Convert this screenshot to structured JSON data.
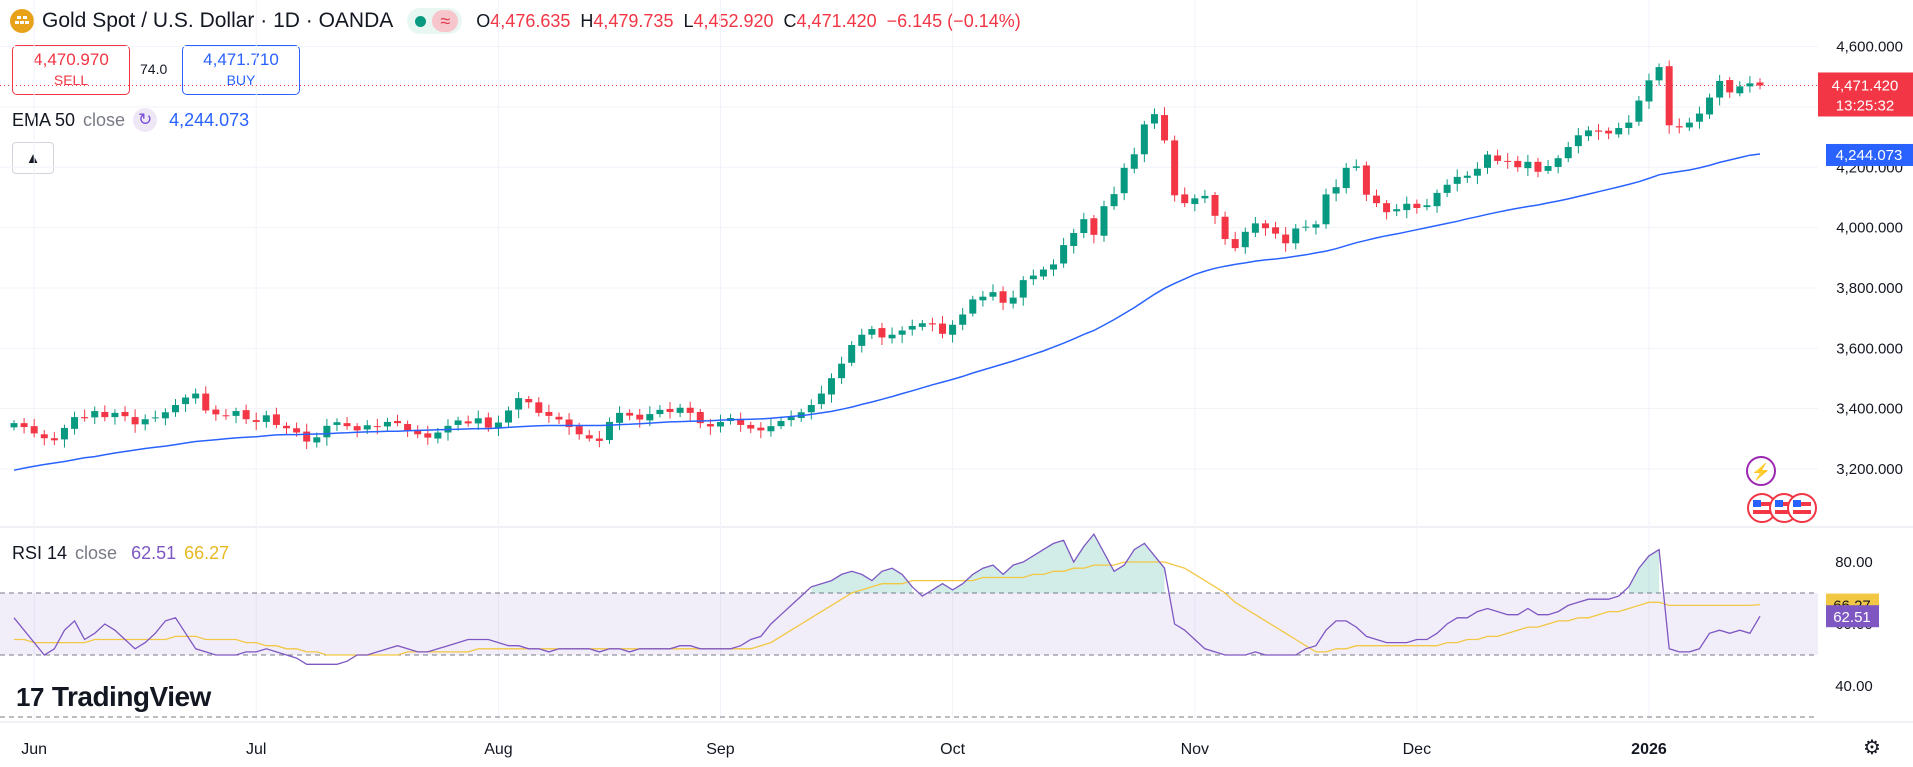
{
  "header": {
    "symbol": "Gold Spot / U.S. Dollar · 1D · OANDA",
    "ohlc": [
      {
        "k": "O",
        "v": "4,476.635"
      },
      {
        "k": "H",
        "v": "4,479.735"
      },
      {
        "k": "L",
        "v": "4,452.920"
      },
      {
        "k": "C",
        "v": "4,471.420"
      }
    ],
    "change": "−6.145 (−0.14%)"
  },
  "trade": {
    "sell_price": "4,470.970",
    "sell_label": "SELL",
    "spread": "74.0",
    "buy_price": "4,471.710",
    "buy_label": "BUY"
  },
  "ema_legend": {
    "name": "EMA 50",
    "param": "close",
    "value": "4,244.073"
  },
  "rsi_legend": {
    "name": "RSI 14",
    "param": "close",
    "value_rsi": "62.51",
    "value_ma": "66.27"
  },
  "brand": {
    "name": "TradingView"
  },
  "colors": {
    "up": "#089981",
    "down": "#f23645",
    "ema": "#2962ff",
    "rsi": "#7e57c2",
    "rsi_ma": "#f2c744"
  },
  "chart_data": [
    {
      "type": "candlestick",
      "title": "Gold Spot / U.S. Dollar",
      "ylim": [
        3080,
        4680
      ],
      "y_ticks": [
        3200,
        3400,
        3600,
        3800,
        4000,
        4200,
        4400,
        4600
      ],
      "y_tick_labels": [
        "3,200.000",
        "3,400.000",
        "3,600.000",
        "3,800.000",
        "4,000.000",
        "4,200.000",
        "4,400.000",
        "4,600.000"
      ],
      "x_tick_labels": [
        "Jun",
        "Jul",
        "Aug",
        "Sep",
        "Oct",
        "Nov",
        "Dec",
        "2026"
      ],
      "x_tick_bar_index": [
        2,
        24,
        48,
        70,
        93,
        117,
        139,
        162
      ],
      "last_price_label": "4,471.420",
      "countdown": "13:25:32",
      "ema_label": "4,244.073",
      "close": [
        3352,
        3339,
        3318,
        3302,
        3295,
        3336,
        3372,
        3368,
        3392,
        3372,
        3386,
        3375,
        3348,
        3365,
        3371,
        3388,
        3412,
        3437,
        3450,
        3394,
        3381,
        3376,
        3392,
        3365,
        3356,
        3378,
        3346,
        3335,
        3321,
        3291,
        3305,
        3343,
        3355,
        3342,
        3328,
        3345,
        3341,
        3356,
        3352,
        3327,
        3315,
        3304,
        3321,
        3343,
        3361,
        3351,
        3368,
        3337,
        3354,
        3394,
        3435,
        3421,
        3386,
        3376,
        3364,
        3339,
        3315,
        3301,
        3293,
        3356,
        3386,
        3377,
        3364,
        3382,
        3396,
        3389,
        3403,
        3386,
        3352,
        3341,
        3356,
        3369,
        3346,
        3334,
        3328,
        3342,
        3359,
        3372,
        3388,
        3412,
        3450,
        3501,
        3549,
        3611,
        3645,
        3664,
        3636,
        3645,
        3659,
        3674,
        3683,
        3679,
        3648,
        3678,
        3712,
        3762,
        3771,
        3786,
        3751,
        3768,
        3826,
        3841,
        3861,
        3878,
        3942,
        3982,
        4028,
        3976,
        4071,
        4111,
        4198,
        4243,
        4342,
        4376,
        4289,
        4107,
        4081,
        4097,
        4105,
        4039,
        3962,
        3932,
        3986,
        4014,
        3998,
        3980,
        3948,
        3997,
        4003,
        4011,
        4110,
        4134,
        4198,
        4203,
        4109,
        4081,
        4051,
        4061,
        4079,
        4065,
        4074,
        4115,
        4142,
        4168,
        4172,
        4195,
        4242,
        4221,
        4218,
        4200,
        4218,
        4185,
        4204,
        4230,
        4267,
        4306,
        4322,
        4318,
        4312,
        4330,
        4348,
        4421,
        4488,
        4532,
        4339,
        4332,
        4348,
        4378,
        4431,
        4486,
        4448,
        4468,
        4478,
        4471
      ],
      "ema50": [
        3196,
        3203,
        3209,
        3215,
        3220,
        3225,
        3231,
        3237,
        3241,
        3247,
        3253,
        3258,
        3263,
        3268,
        3272,
        3276,
        3281,
        3286,
        3291,
        3294,
        3297,
        3300,
        3303,
        3305,
        3307,
        3310,
        3313,
        3314,
        3314,
        3315,
        3316,
        3317,
        3319,
        3320,
        3322,
        3323,
        3324,
        3325,
        3325,
        3327,
        3328,
        3329,
        3330,
        3331,
        3332,
        3333,
        3334,
        3334,
        3336,
        3338,
        3340,
        3342,
        3343,
        3344,
        3344,
        3344,
        3344,
        3344,
        3344,
        3345,
        3347,
        3348,
        3350,
        3352,
        3354,
        3356,
        3357,
        3358,
        3359,
        3360,
        3362,
        3363,
        3364,
        3365,
        3366,
        3368,
        3371,
        3374,
        3377,
        3381,
        3386,
        3391,
        3398,
        3405,
        3414,
        3422,
        3431,
        3440,
        3450,
        3459,
        3469,
        3479,
        3488,
        3497,
        3507,
        3518,
        3528,
        3538,
        3548,
        3558,
        3569,
        3580,
        3591,
        3604,
        3617,
        3631,
        3646,
        3659,
        3677,
        3695,
        3715,
        3735,
        3757,
        3779,
        3799,
        3815,
        3830,
        3845,
        3856,
        3865,
        3872,
        3878,
        3883,
        3889,
        3893,
        3896,
        3900,
        3905,
        3910,
        3916,
        3922,
        3930,
        3940,
        3950,
        3958,
        3966,
        3973,
        3979,
        3986,
        3993,
        4000,
        4007,
        4014,
        4021,
        4029,
        4036,
        4044,
        4051,
        4058,
        4064,
        4070,
        4075,
        4082,
        4088,
        4095,
        4103,
        4111,
        4119,
        4127,
        4135,
        4143,
        4152,
        4163,
        4175,
        4181,
        4186,
        4191,
        4198,
        4206,
        4216,
        4224,
        4232,
        4240,
        4244
      ]
    },
    {
      "type": "line",
      "title": "RSI 14",
      "ylim": [
        30,
        90
      ],
      "y_ticks": [
        40,
        60,
        80
      ],
      "y_tick_labels": [
        "40.00",
        "60.00",
        "80.00"
      ],
      "band": [
        50,
        70
      ],
      "series": [
        {
          "name": "RSI 14",
          "values": [
            62,
            58,
            54,
            50,
            52,
            58,
            61,
            55,
            57,
            60,
            58,
            55,
            52,
            54,
            57,
            61,
            62,
            57,
            52,
            51,
            50,
            50,
            50,
            51,
            51,
            52,
            51,
            50,
            49,
            47,
            47,
            47,
            47,
            48,
            50,
            50,
            51,
            52,
            53,
            52,
            51,
            51,
            52,
            53,
            54,
            55,
            55,
            55,
            54,
            53,
            53,
            52,
            52,
            51,
            52,
            52,
            52,
            52,
            51,
            52,
            52,
            51,
            52,
            52,
            52,
            52,
            53,
            53,
            52,
            52,
            52,
            52,
            53,
            55,
            56,
            60,
            63,
            66,
            69,
            72,
            73,
            74,
            76,
            77,
            76,
            74,
            77,
            78,
            76,
            72,
            69,
            71,
            73,
            71,
            73,
            76,
            78,
            79,
            76,
            79,
            80,
            82,
            84,
            86,
            87,
            80,
            85,
            89,
            83,
            77,
            79,
            84,
            86,
            82,
            78,
            60,
            58,
            55,
            52,
            51,
            50,
            50,
            50,
            51,
            50,
            50,
            50,
            50,
            52,
            53,
            58,
            61,
            61,
            59,
            56,
            55,
            54,
            54,
            54,
            55,
            55,
            57,
            60,
            62,
            62,
            64,
            65,
            64,
            63,
            63,
            65,
            63,
            63,
            64,
            66,
            67,
            68,
            68,
            68,
            69,
            72,
            78,
            82,
            84,
            52,
            51,
            51,
            52,
            57,
            58,
            57,
            58,
            57,
            62.51
          ]
        },
        {
          "name": "RSI MA",
          "values": [
            55,
            55,
            54,
            54,
            54,
            54,
            54,
            54,
            55,
            55,
            55,
            55,
            55,
            55,
            55,
            55,
            56,
            56,
            56,
            55,
            55,
            55,
            55,
            54,
            54,
            53,
            53,
            52,
            52,
            51,
            51,
            50,
            50,
            50,
            50,
            50,
            50,
            50,
            50,
            51,
            51,
            51,
            51,
            51,
            51,
            51,
            52,
            52,
            52,
            52,
            52,
            52,
            52,
            52,
            52,
            52,
            52,
            52,
            52,
            52,
            52,
            52,
            52,
            52,
            52,
            52,
            52,
            52,
            52,
            52,
            52,
            52,
            52,
            52,
            53,
            54,
            56,
            58,
            60,
            62,
            64,
            66,
            68,
            70,
            71,
            72,
            73,
            73,
            73,
            74,
            74,
            74,
            74,
            74,
            74,
            74,
            75,
            75,
            75,
            75,
            75,
            76,
            76,
            77,
            77,
            78,
            78,
            79,
            79,
            79,
            80,
            80,
            80,
            80,
            80,
            79,
            78,
            76,
            74,
            72,
            70,
            67,
            65,
            63,
            61,
            59,
            57,
            55,
            53,
            51,
            51,
            52,
            52,
            53,
            53,
            53,
            53,
            53,
            53,
            53,
            53,
            53,
            54,
            54,
            55,
            55,
            56,
            56,
            57,
            58,
            59,
            59,
            60,
            61,
            61,
            62,
            62,
            63,
            64,
            64,
            65,
            66,
            67,
            67,
            66,
            66,
            66,
            66,
            66,
            66,
            66,
            66,
            66,
            66.27
          ]
        }
      ],
      "rsi_label": "62.51",
      "ma_label": "66.27"
    }
  ]
}
